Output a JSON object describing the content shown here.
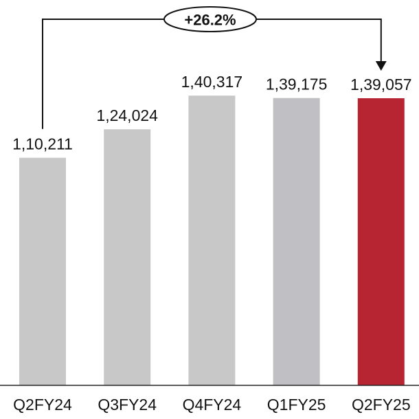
{
  "chart_data": {
    "type": "bar",
    "categories": [
      "Q2FY24",
      "Q3FY24",
      "Q4FY24",
      "Q1FY25",
      "Q2FY25"
    ],
    "values": [
      110211,
      124024,
      140317,
      139175,
      139057
    ],
    "value_labels": [
      "1,10,211",
      "1,24,024",
      "1,40,317",
      "1,39,175",
      "1,39,057"
    ],
    "title": "",
    "xlabel": "",
    "ylabel": "",
    "ylim": [
      0,
      175000
    ],
    "grid": false,
    "bar_colors": [
      "#c8c8c8",
      "#c8c8c8",
      "#c8c8c8",
      "#c0c0c4",
      "#b72432"
    ],
    "annotation": {
      "text": "+26.2%",
      "from": "Q2FY24",
      "to": "Q2FY25"
    }
  },
  "colors": {
    "axis": "#222222",
    "text": "#111111",
    "highlight": "#b72432"
  }
}
